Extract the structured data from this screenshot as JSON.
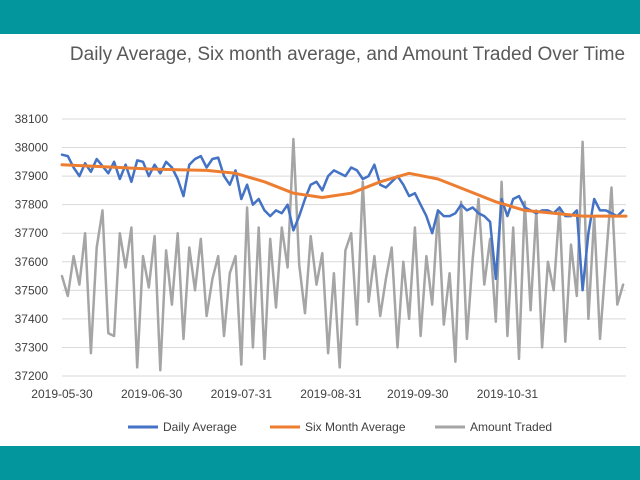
{
  "colors": {
    "frame": "#03969c",
    "daily": "#4472c4",
    "six_month": "#ed7d31",
    "amount": "#a5a5a5",
    "grid": "#d9d9d9"
  },
  "chart_data": {
    "type": "line",
    "title": "Daily Average, Six month average, and Amount Traded Over Time",
    "xlabel": "",
    "ylabel": "",
    "ylim": [
      37200,
      38100
    ],
    "yticks": [
      37200,
      37300,
      37400,
      37500,
      37600,
      37700,
      37800,
      37900,
      38000,
      38100
    ],
    "xlim": [
      0,
      195
    ],
    "xticks": [
      {
        "pos": 0,
        "label": "2019-05-30"
      },
      {
        "pos": 31,
        "label": "2019-06-30"
      },
      {
        "pos": 62,
        "label": "2019-07-31"
      },
      {
        "pos": 93,
        "label": "2019-08-31"
      },
      {
        "pos": 123,
        "label": "2019-09-30"
      },
      {
        "pos": 154,
        "label": "2019-10-31"
      }
    ],
    "legend_position": "bottom",
    "series": [
      {
        "name": "Daily Average",
        "color": "#4472c4",
        "x": [
          0,
          2,
          4,
          6,
          8,
          10,
          12,
          14,
          16,
          18,
          20,
          22,
          24,
          26,
          28,
          30,
          32,
          34,
          36,
          38,
          40,
          42,
          44,
          46,
          48,
          50,
          52,
          54,
          56,
          58,
          60,
          62,
          64,
          66,
          68,
          70,
          72,
          74,
          76,
          78,
          80,
          82,
          84,
          86,
          88,
          90,
          92,
          94,
          96,
          98,
          100,
          102,
          104,
          106,
          108,
          110,
          112,
          114,
          116,
          118,
          120,
          122,
          124,
          126,
          128,
          130,
          132,
          134,
          136,
          138,
          140,
          142,
          144,
          146,
          148,
          150,
          152,
          154,
          156,
          158,
          160,
          162,
          164,
          166,
          168,
          170,
          172,
          174,
          176,
          178,
          180,
          182,
          184,
          186,
          188,
          190,
          192,
          194
        ],
        "values": [
          37975,
          37970,
          37930,
          37900,
          37945,
          37915,
          37960,
          37935,
          37910,
          37950,
          37890,
          37940,
          37880,
          37955,
          37950,
          37900,
          37940,
          37910,
          37950,
          37930,
          37890,
          37830,
          37940,
          37960,
          37970,
          37930,
          37960,
          37965,
          37900,
          37870,
          37920,
          37820,
          37870,
          37800,
          37820,
          37780,
          37760,
          37780,
          37770,
          37800,
          37710,
          37760,
          37820,
          37870,
          37880,
          37850,
          37900,
          37920,
          37910,
          37900,
          37930,
          37920,
          37890,
          37900,
          37940,
          37870,
          37860,
          37880,
          37900,
          37870,
          37830,
          37840,
          37800,
          37760,
          37700,
          37780,
          37760,
          37760,
          37770,
          37800,
          37780,
          37790,
          37770,
          37760,
          37740,
          37540,
          37820,
          37760,
          37820,
          37830,
          37790,
          37780,
          37770,
          37780,
          37780,
          37770,
          37790,
          37760,
          37760,
          37780,
          37500,
          37700,
          37820,
          37780,
          37780,
          37770,
          37760,
          37780
        ]
      },
      {
        "name": "Six Month Average",
        "color": "#ed7d31",
        "x": [
          0,
          10,
          20,
          30,
          40,
          50,
          60,
          70,
          80,
          90,
          100,
          110,
          120,
          130,
          140,
          150,
          160,
          170,
          180,
          190,
          195
        ],
        "values": [
          37940,
          37935,
          37930,
          37925,
          37922,
          37920,
          37910,
          37880,
          37840,
          37825,
          37840,
          37880,
          37910,
          37890,
          37850,
          37810,
          37780,
          37770,
          37760,
          37760,
          37760
        ]
      },
      {
        "name": "Amount Traded",
        "color": "#a5a5a5",
        "x": [
          0,
          2,
          4,
          6,
          8,
          10,
          12,
          14,
          16,
          18,
          20,
          22,
          24,
          26,
          28,
          30,
          32,
          34,
          36,
          38,
          40,
          42,
          44,
          46,
          48,
          50,
          52,
          54,
          56,
          58,
          60,
          62,
          64,
          66,
          68,
          70,
          72,
          74,
          76,
          78,
          80,
          82,
          84,
          86,
          88,
          90,
          92,
          94,
          96,
          98,
          100,
          102,
          104,
          106,
          108,
          110,
          112,
          114,
          116,
          118,
          120,
          122,
          124,
          126,
          128,
          130,
          132,
          134,
          136,
          138,
          140,
          142,
          144,
          146,
          148,
          150,
          152,
          154,
          156,
          158,
          160,
          162,
          164,
          166,
          168,
          170,
          172,
          174,
          176,
          178,
          180,
          182,
          184,
          186,
          188,
          190,
          192,
          194
        ],
        "values": [
          37550,
          37480,
          37620,
          37520,
          37700,
          37280,
          37650,
          37780,
          37350,
          37340,
          37700,
          37580,
          37720,
          37230,
          37620,
          37510,
          37690,
          37220,
          37640,
          37450,
          37700,
          37330,
          37650,
          37500,
          37680,
          37410,
          37540,
          37620,
          37340,
          37560,
          37620,
          37240,
          37790,
          37300,
          37720,
          37260,
          37680,
          37440,
          37720,
          37580,
          38030,
          37590,
          37420,
          37690,
          37520,
          37630,
          37280,
          37560,
          37230,
          37640,
          37700,
          37380,
          37880,
          37460,
          37620,
          37410,
          37540,
          37650,
          37300,
          37600,
          37400,
          37720,
          37340,
          37620,
          37450,
          37780,
          37380,
          37560,
          37250,
          37810,
          37330,
          37610,
          37820,
          37520,
          37680,
          37390,
          37880,
          37340,
          37720,
          37260,
          37810,
          37430,
          37780,
          37300,
          37600,
          37500,
          37790,
          37320,
          37660,
          37480,
          38020,
          37400,
          37760,
          37330,
          37600,
          37860,
          37450,
          37520
        ]
      }
    ]
  }
}
